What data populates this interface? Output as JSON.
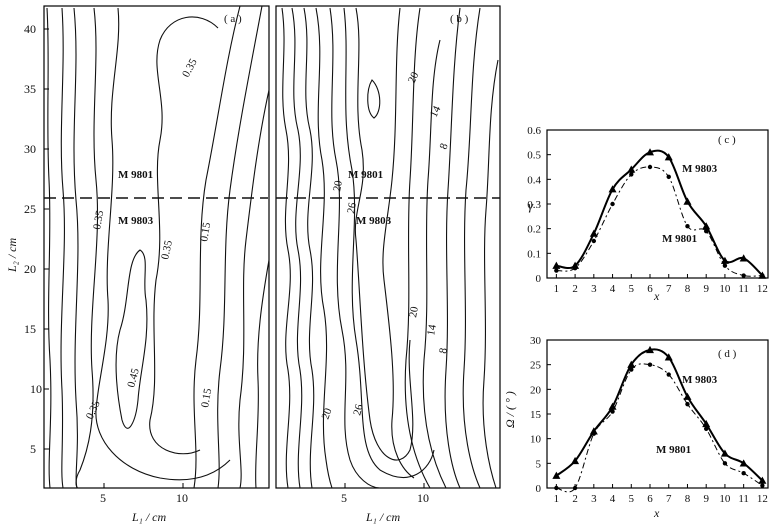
{
  "panels": {
    "a": {
      "tag": "( a )",
      "x_tick_labels": [
        "5",
        "10"
      ],
      "y_tick_labels": [
        "5",
        "10",
        "15",
        "20",
        "25",
        "30",
        "35",
        "40"
      ],
      "contour_labels": [
        "0.35",
        "0.35",
        "0.35",
        "0.15",
        "0.35",
        "0.45",
        "0.15"
      ],
      "section_labels": [
        "M 9801",
        "M 9803"
      ]
    },
    "b": {
      "tag": "( b )",
      "x_tick_labels": [
        "5",
        "10"
      ],
      "contour_labels": [
        "20",
        "14",
        "8",
        "20",
        "26",
        "20",
        "14",
        "8",
        "20",
        "26"
      ],
      "section_labels": [
        "M 9801",
        "M 9803"
      ]
    },
    "shared": {
      "xlabel": "L₁ / cm",
      "ylabel": "L₂ / cm"
    },
    "c": {
      "tag": "( c )",
      "ylabel": "γ",
      "xlabel": "x",
      "y_tick_labels": [
        "0",
        "0.1",
        "0.2",
        "0.3",
        "0.4",
        "0.5",
        "0.6"
      ]
    },
    "d": {
      "tag": "( d )",
      "ylabel": "Ω / ( ° )",
      "xlabel": "x",
      "y_tick_labels": [
        "0",
        "5",
        "10",
        "15",
        "20",
        "25",
        "30"
      ]
    }
  },
  "chart_data": [
    {
      "panel": "c",
      "type": "line",
      "x": [
        1,
        2,
        3,
        4,
        5,
        6,
        7,
        8,
        9,
        10,
        11,
        12
      ],
      "series": [
        {
          "name": "M 9803",
          "values": [
            0.05,
            0.05,
            0.18,
            0.36,
            0.44,
            0.51,
            0.49,
            0.31,
            0.21,
            0.07,
            0.08,
            0.01
          ]
        },
        {
          "name": "M 9801",
          "values": [
            0.03,
            0.04,
            0.15,
            0.3,
            0.42,
            0.45,
            0.41,
            0.21,
            0.19,
            0.05,
            0.01,
            0.01
          ]
        }
      ],
      "xlabel": "x",
      "ylabel": "γ",
      "xlim": [
        0.5,
        12.3
      ],
      "ylim": [
        0,
        0.6
      ]
    },
    {
      "panel": "d",
      "type": "line",
      "x": [
        1,
        2,
        3,
        4,
        5,
        6,
        7,
        8,
        9,
        10,
        11,
        12
      ],
      "series": [
        {
          "name": "M 9803",
          "values": [
            2.5,
            5.5,
            11.5,
            16.5,
            25.0,
            28.0,
            26.5,
            18.5,
            13.0,
            7.0,
            5.0,
            1.5
          ]
        },
        {
          "name": "M 9801",
          "values": [
            0.0,
            0.0,
            11.0,
            15.5,
            24.0,
            25.0,
            23.0,
            17.0,
            12.0,
            5.0,
            3.0,
            0.5
          ]
        }
      ],
      "xlabel": "x",
      "ylabel": "Ω / ( ° )",
      "xlim": [
        0.5,
        12.3
      ],
      "ylim": [
        0,
        30
      ]
    }
  ]
}
